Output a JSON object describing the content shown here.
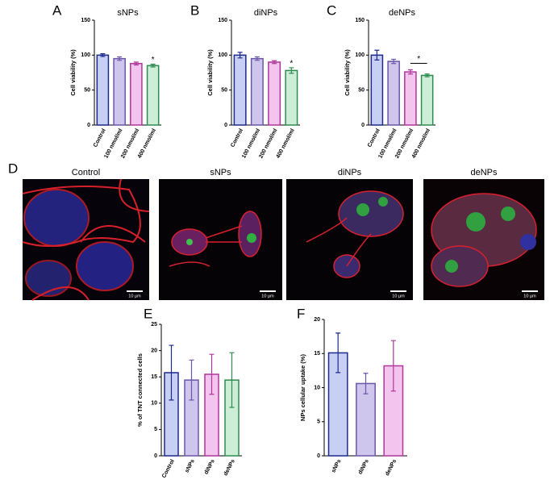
{
  "chart_data": [
    {
      "type": "bar",
      "label": "A",
      "title": "sNPs",
      "ylabel": "Cell viability (%)",
      "categories": [
        "Control",
        "100 nmol/ml",
        "200 nmol/ml",
        "400 nmol/ml"
      ],
      "values": [
        100,
        95,
        88,
        85
      ],
      "errors": [
        2,
        2.5,
        2,
        2
      ],
      "colors": [
        "#c7cff5",
        "#cfc6ee",
        "#f2c4ee",
        "#cdeed6"
      ],
      "edgecolors": [
        "#1c2a8c",
        "#6b56a8",
        "#b0369a",
        "#2e8b50"
      ],
      "ylim": [
        0,
        150
      ],
      "yticks": [
        0,
        50,
        100,
        150
      ],
      "annotation": "*"
    },
    {
      "type": "bar",
      "label": "B",
      "title": "diNPs",
      "ylabel": "Cell viability (%)",
      "categories": [
        "Control",
        "100 nmol/ml",
        "200 nmol/ml",
        "400 nmol/ml"
      ],
      "values": [
        100,
        95,
        90,
        78
      ],
      "errors": [
        4,
        2.5,
        2,
        4
      ],
      "colors": [
        "#c7cff5",
        "#cfc6ee",
        "#f2c4ee",
        "#cdeed6"
      ],
      "edgecolors": [
        "#1c2a8c",
        "#6b56a8",
        "#b0369a",
        "#2e8b50"
      ],
      "ylim": [
        0,
        150
      ],
      "yticks": [
        0,
        50,
        100,
        150
      ],
      "annotation": "*"
    },
    {
      "type": "bar",
      "label": "C",
      "title": "deNPs",
      "ylabel": "Cell viability (%)",
      "categories": [
        "Control",
        "100 nmol/ml",
        "200 nmol/ml",
        "400 nmol/ml"
      ],
      "values": [
        100,
        91,
        76,
        71
      ],
      "errors": [
        7,
        3,
        3,
        2
      ],
      "colors": [
        "#c7cff5",
        "#cfc6ee",
        "#f2c4ee",
        "#cdeed6"
      ],
      "edgecolors": [
        "#1c2a8c",
        "#6b56a8",
        "#b0369a",
        "#2e8b50"
      ],
      "ylim": [
        0,
        150
      ],
      "yticks": [
        0,
        50,
        100,
        150
      ],
      "annotation": "*"
    },
    {
      "type": "bar",
      "label": "E",
      "ylabel": "% of TNT connected cells",
      "categories": [
        "Control",
        "sNPs",
        "diNPs",
        "deNPs"
      ],
      "values": [
        15.8,
        14.4,
        15.5,
        14.4
      ],
      "errors": [
        5.2,
        3.8,
        3.8,
        5.2
      ],
      "colors": [
        "#c7cff5",
        "#cfc6ee",
        "#f2c4ee",
        "#cdeed6"
      ],
      "edgecolors": [
        "#1c2a8c",
        "#6b56a8",
        "#b0369a",
        "#2e8b50"
      ],
      "ylim": [
        0,
        25
      ],
      "yticks": [
        0,
        5,
        10,
        15,
        20,
        25
      ]
    },
    {
      "type": "bar",
      "label": "F",
      "ylabel": "NPs cellular uptake (%)",
      "categories": [
        "sNPs",
        "diNPs",
        "deNPs"
      ],
      "values": [
        15.1,
        10.6,
        13.2
      ],
      "errors": [
        2.9,
        1.5,
        3.7
      ],
      "colors": [
        "#c7cff5",
        "#cfc6ee",
        "#f2c4ee"
      ],
      "edgecolors": [
        "#1c2a8c",
        "#6b56a8",
        "#b0369a"
      ],
      "ylim": [
        0,
        20
      ],
      "yticks": [
        0,
        5,
        10,
        15,
        20
      ]
    }
  ],
  "micrographs": {
    "label": "D",
    "images": [
      {
        "title": "Control",
        "scale_bar": "10 µm"
      },
      {
        "title": "sNPs",
        "scale_bar": "10 µm"
      },
      {
        "title": "diNPs",
        "scale_bar": "10 µm"
      },
      {
        "title": "deNPs",
        "scale_bar": "10 µm"
      }
    ]
  }
}
